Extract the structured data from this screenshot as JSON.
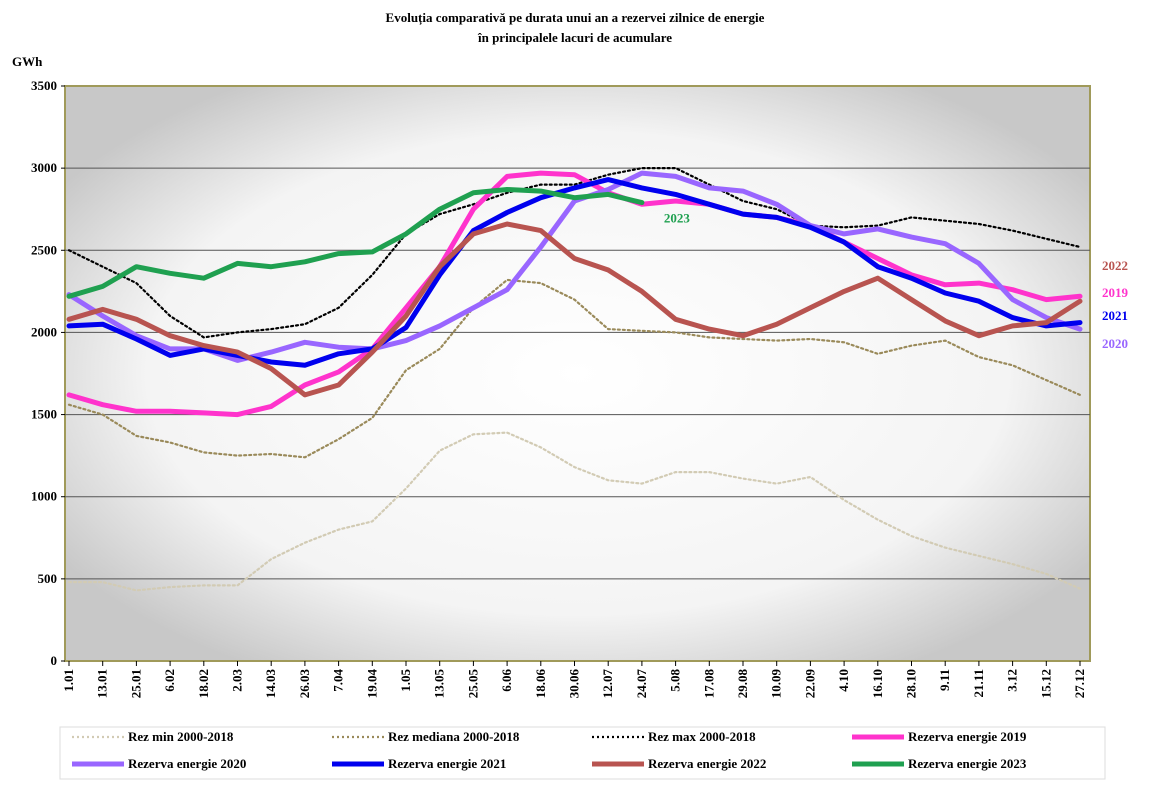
{
  "chart_data": {
    "type": "line",
    "title": [
      "Evoluția comparativă pe durata unui an a rezervei zilnice de energie",
      "în principalele lacuri de acumulare"
    ],
    "y_label": "GWh",
    "categories": [
      "1.01",
      "13.01",
      "25.01",
      "6.02",
      "18.02",
      "2.03",
      "14.03",
      "26.03",
      "7.04",
      "19.04",
      "1.05",
      "13.05",
      "25.05",
      "6.06",
      "18.06",
      "30.06",
      "12.07",
      "24.07",
      "5.08",
      "17.08",
      "29.08",
      "10.09",
      "22.09",
      "4.10",
      "16.10",
      "28.10",
      "9.11",
      "21.11",
      "3.12",
      "15.12",
      "27.12"
    ],
    "ylim": [
      0,
      3500
    ],
    "yticks": [
      0,
      500,
      1000,
      1500,
      2000,
      2500,
      3000,
      3500
    ],
    "grid": true,
    "series": [
      {
        "name": "Rez min 2000-2018",
        "color": "#d2cbb4",
        "dash": "dotted",
        "values": [
          480,
          480,
          430,
          450,
          460,
          460,
          620,
          720,
          800,
          850,
          1050,
          1280,
          1380,
          1390,
          1300,
          1180,
          1100,
          1080,
          1150,
          1150,
          1110,
          1080,
          1120,
          980,
          860,
          760,
          690,
          640,
          590,
          530,
          440
        ]
      },
      {
        "name": "Rez mediana 2000-2018",
        "color": "#9a8a5a",
        "dash": "dotted",
        "values": [
          1560,
          1500,
          1370,
          1330,
          1270,
          1250,
          1260,
          1240,
          1350,
          1480,
          1770,
          1900,
          2150,
          2320,
          2300,
          2200,
          2020,
          2010,
          2000,
          1970,
          1960,
          1950,
          1960,
          1940,
          1870,
          1920,
          1950,
          1850,
          1800,
          1710,
          1620
        ]
      },
      {
        "name": "Rez max 2000-2018",
        "color": "#000000",
        "dash": "dotted",
        "values": [
          2500,
          2400,
          2300,
          2100,
          1970,
          2000,
          2020,
          2050,
          2150,
          2350,
          2600,
          2720,
          2780,
          2850,
          2900,
          2900,
          2960,
          3000,
          3000,
          2900,
          2800,
          2750,
          2650,
          2640,
          2650,
          2700,
          2680,
          2660,
          2620,
          2570,
          2520
        ]
      },
      {
        "name": "Rezerva energie 2019",
        "color": "#ff33cc",
        "dash": "solid",
        "end_label": "2019",
        "values": [
          1620,
          1560,
          1520,
          1520,
          1510,
          1500,
          1550,
          1680,
          1760,
          1900,
          2150,
          2400,
          2750,
          2950,
          2970,
          2960,
          2850,
          2780,
          2800,
          2780,
          2720,
          2700,
          2650,
          2550,
          2450,
          2350,
          2290,
          2300,
          2260,
          2200,
          2220
        ]
      },
      {
        "name": "Rezerva energie 2020",
        "color": "#9966ff",
        "dash": "solid",
        "end_label": "2020",
        "values": [
          2230,
          2100,
          1980,
          1900,
          1900,
          1830,
          1880,
          1940,
          1910,
          1900,
          1950,
          2040,
          2150,
          2260,
          2520,
          2800,
          2870,
          2970,
          2950,
          2880,
          2860,
          2780,
          2650,
          2600,
          2630,
          2580,
          2540,
          2420,
          2200,
          2090,
          2020
        ]
      },
      {
        "name": "Rezerva energie 2021",
        "color": "#0000ee",
        "dash": "solid",
        "end_label": "2021",
        "values": [
          2040,
          2050,
          1960,
          1860,
          1900,
          1860,
          1820,
          1800,
          1870,
          1900,
          2030,
          2350,
          2620,
          2730,
          2820,
          2880,
          2930,
          2880,
          2840,
          2780,
          2720,
          2700,
          2640,
          2550,
          2400,
          2330,
          2240,
          2190,
          2090,
          2040,
          2060
        ]
      },
      {
        "name": "Rezerva energie 2022",
        "color": "#b85450",
        "dash": "solid",
        "end_label": "2022",
        "values": [
          2080,
          2140,
          2080,
          1980,
          1920,
          1880,
          1780,
          1620,
          1680,
          1880,
          2100,
          2400,
          2600,
          2660,
          2620,
          2450,
          2380,
          2250,
          2080,
          2020,
          1980,
          2050,
          2150,
          2250,
          2330,
          2200,
          2070,
          1980,
          2040,
          2060,
          2190
        ]
      },
      {
        "name": "Rezerva energie 2023",
        "color": "#1fa050",
        "dash": "solid",
        "end_label": "2023",
        "values": [
          2220,
          2280,
          2400,
          2360,
          2330,
          2420,
          2400,
          2430,
          2480,
          2490,
          2600,
          2750,
          2850,
          2870,
          2860,
          2820,
          2840,
          2790,
          null,
          null,
          null,
          null,
          null,
          null,
          null,
          null,
          null,
          null,
          null,
          null,
          null
        ]
      }
    ]
  }
}
